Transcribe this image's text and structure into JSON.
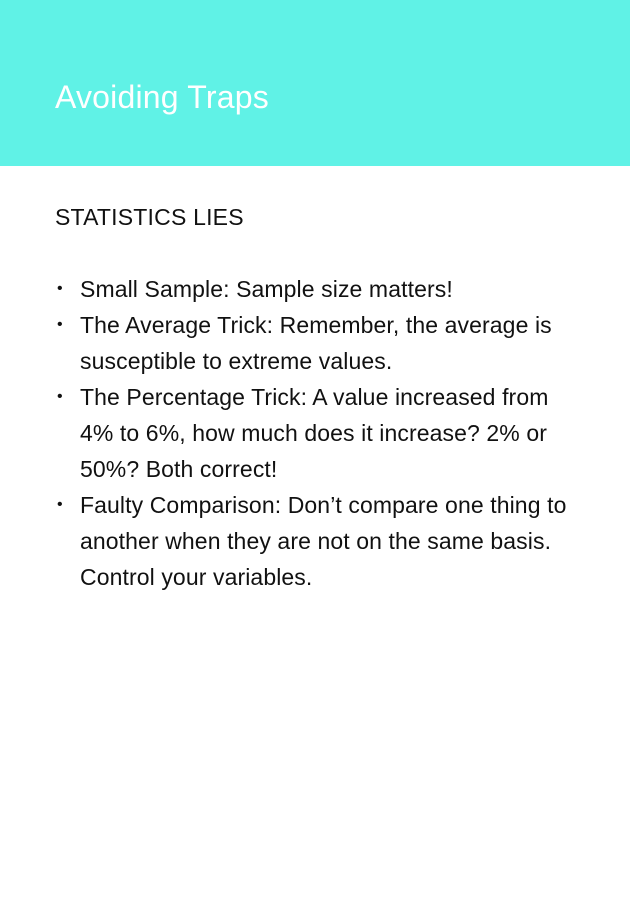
{
  "header": {
    "title": "Avoiding Traps",
    "background_color": "#60f2e6"
  },
  "section": {
    "heading": "STATISTICS LIES",
    "bullet_glyph": "•",
    "items": [
      "Small Sample: Sample size matters!",
      "The Average Trick: Remember, the average is susceptible to extreme values.",
      "The Percentage Trick: A value increased from 4% to 6%, how much does it increase? 2% or 50%? Both correct!",
      "Faulty Comparison: Don’t compare one thing to another when they are not on the same basis. Control your variables."
    ]
  }
}
